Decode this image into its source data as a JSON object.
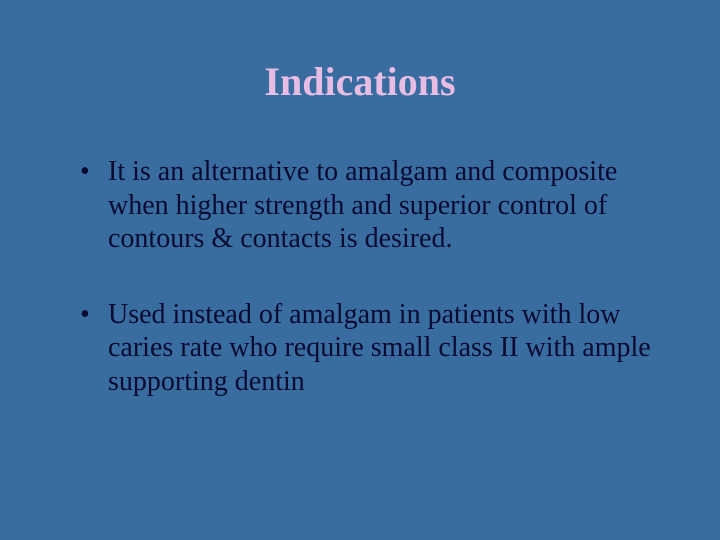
{
  "slide": {
    "title": "Indications",
    "title_color": "#e8bde4",
    "title_fontsize": 40,
    "title_fontweight": "bold",
    "background_color": "#396da0",
    "body_text_color": "#0a0a33",
    "body_fontsize": 28,
    "bullets": [
      "It is an alternative to amalgam and composite when higher strength and superior control of contours & contacts is desired.",
      "Used instead of amalgam in patients with low caries rate who require small class II with ample supporting dentin"
    ]
  }
}
